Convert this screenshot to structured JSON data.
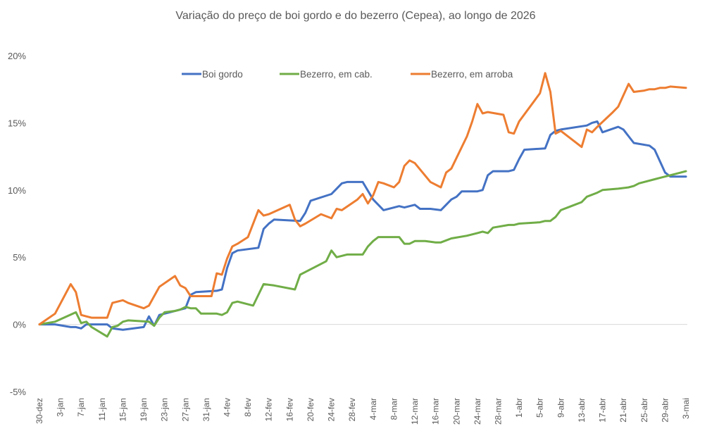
{
  "chart_data": {
    "type": "line",
    "title": "Variação do preço de boi gordo  e do bezerro (Cepea), ao longo de 2026",
    "xlabel": "",
    "ylabel": "",
    "ylim": [
      -0.05,
      0.2
    ],
    "yticks": [
      {
        "value": -0.05,
        "label": "-5%"
      },
      {
        "value": 0.0,
        "label": "0%"
      },
      {
        "value": 0.05,
        "label": "5%"
      },
      {
        "value": 0.1,
        "label": "10%"
      },
      {
        "value": 0.15,
        "label": "15%"
      },
      {
        "value": 0.2,
        "label": "20%"
      }
    ],
    "xlim": [
      0,
      124
    ],
    "xticks": [
      {
        "day": 0,
        "label": "30-dez"
      },
      {
        "day": 4,
        "label": "3-jan"
      },
      {
        "day": 8,
        "label": "7-jan"
      },
      {
        "day": 12,
        "label": "11-jan"
      },
      {
        "day": 16,
        "label": "15-jan"
      },
      {
        "day": 20,
        "label": "19-jan"
      },
      {
        "day": 24,
        "label": "23-jan"
      },
      {
        "day": 28,
        "label": "27-jan"
      },
      {
        "day": 32,
        "label": "31-jan"
      },
      {
        "day": 36,
        "label": "4-fev"
      },
      {
        "day": 40,
        "label": "8-fev"
      },
      {
        "day": 44,
        "label": "12-fev"
      },
      {
        "day": 48,
        "label": "16-fev"
      },
      {
        "day": 52,
        "label": "20-fev"
      },
      {
        "day": 56,
        "label": "24-fev"
      },
      {
        "day": 60,
        "label": "28-fev"
      },
      {
        "day": 64,
        "label": "4-mar"
      },
      {
        "day": 68,
        "label": "8-mar"
      },
      {
        "day": 72,
        "label": "12-mar"
      },
      {
        "day": 76,
        "label": "16-mar"
      },
      {
        "day": 80,
        "label": "20-mar"
      },
      {
        "day": 84,
        "label": "24-mar"
      },
      {
        "day": 88,
        "label": "28-mar"
      },
      {
        "day": 92,
        "label": "1-abr"
      },
      {
        "day": 96,
        "label": "5-abr"
      },
      {
        "day": 100,
        "label": "9-abr"
      },
      {
        "day": 104,
        "label": "13-abr"
      },
      {
        "day": 108,
        "label": "17-abr"
      },
      {
        "day": 112,
        "label": "21-abr"
      },
      {
        "day": 116,
        "label": "25-abr"
      },
      {
        "day": 120,
        "label": "29-abr"
      },
      {
        "day": 124,
        "label": "3-mai"
      }
    ],
    "legend_position": "top",
    "series": [
      {
        "name": "Boi gordo",
        "color": "#4472C4",
        "points": [
          [
            0,
            0.0
          ],
          [
            1,
            0.0
          ],
          [
            3,
            0.0
          ],
          [
            6,
            -0.002
          ],
          [
            7,
            -0.002
          ],
          [
            8,
            -0.003
          ],
          [
            9,
            0.0
          ],
          [
            13,
            0.0
          ],
          [
            14,
            -0.003
          ],
          [
            16,
            -0.004
          ],
          [
            20,
            -0.002
          ],
          [
            21,
            0.006
          ],
          [
            22,
            -0.001
          ],
          [
            23,
            0.007
          ],
          [
            25,
            0.009
          ],
          [
            28,
            0.012
          ],
          [
            29,
            0.022
          ],
          [
            30,
            0.024
          ],
          [
            34,
            0.025
          ],
          [
            35,
            0.026
          ],
          [
            36,
            0.042
          ],
          [
            37,
            0.053
          ],
          [
            38,
            0.055
          ],
          [
            42,
            0.057
          ],
          [
            43,
            0.071
          ],
          [
            44,
            0.075
          ],
          [
            45,
            0.078
          ],
          [
            50,
            0.077
          ],
          [
            51,
            0.083
          ],
          [
            52,
            0.092
          ],
          [
            56,
            0.097
          ],
          [
            57,
            0.101
          ],
          [
            58,
            0.105
          ],
          [
            59,
            0.106
          ],
          [
            61,
            0.106
          ],
          [
            62,
            0.106
          ],
          [
            64,
            0.093
          ],
          [
            65,
            0.089
          ],
          [
            66,
            0.085
          ],
          [
            69,
            0.088
          ],
          [
            70,
            0.087
          ],
          [
            71,
            0.088
          ],
          [
            72,
            0.089
          ],
          [
            73,
            0.086
          ],
          [
            75,
            0.086
          ],
          [
            77,
            0.085
          ],
          [
            79,
            0.093
          ],
          [
            80,
            0.095
          ],
          [
            81,
            0.099
          ],
          [
            84,
            0.099
          ],
          [
            85,
            0.1
          ],
          [
            86,
            0.111
          ],
          [
            87,
            0.114
          ],
          [
            90,
            0.114
          ],
          [
            91,
            0.115
          ],
          [
            92,
            0.123
          ],
          [
            93,
            0.13
          ],
          [
            97,
            0.131
          ],
          [
            98,
            0.141
          ],
          [
            99,
            0.144
          ],
          [
            100,
            0.145
          ],
          [
            105,
            0.148
          ],
          [
            106,
            0.15
          ],
          [
            107,
            0.151
          ],
          [
            108,
            0.143
          ],
          [
            111,
            0.147
          ],
          [
            112,
            0.145
          ],
          [
            113,
            0.14
          ],
          [
            114,
            0.135
          ],
          [
            117,
            0.133
          ],
          [
            118,
            0.13
          ],
          [
            120,
            0.113
          ],
          [
            121,
            0.11
          ],
          [
            124,
            0.11
          ]
        ]
      },
      {
        "name": "Bezerro, em cab.",
        "color": "#70AD47",
        "points": [
          [
            0,
            0.0
          ],
          [
            3,
            0.002
          ],
          [
            7,
            0.009
          ],
          [
            8,
            0.001
          ],
          [
            9,
            0.002
          ],
          [
            10,
            -0.002
          ],
          [
            13,
            -0.009
          ],
          [
            14,
            -0.002
          ],
          [
            15,
            -0.001
          ],
          [
            16,
            0.002
          ],
          [
            17,
            0.003
          ],
          [
            21,
            0.002
          ],
          [
            22,
            -0.001
          ],
          [
            23,
            0.005
          ],
          [
            24,
            0.009
          ],
          [
            26,
            0.01
          ],
          [
            27,
            0.011
          ],
          [
            28,
            0.013
          ],
          [
            29,
            0.012
          ],
          [
            30,
            0.012
          ],
          [
            31,
            0.008
          ],
          [
            33,
            0.008
          ],
          [
            34,
            0.008
          ],
          [
            35,
            0.007
          ],
          [
            36,
            0.009
          ],
          [
            37,
            0.016
          ],
          [
            38,
            0.017
          ],
          [
            41,
            0.014
          ],
          [
            43,
            0.03
          ],
          [
            45,
            0.029
          ],
          [
            49,
            0.026
          ],
          [
            50,
            0.037
          ],
          [
            51,
            0.039
          ],
          [
            55,
            0.047
          ],
          [
            56,
            0.055
          ],
          [
            57,
            0.05
          ],
          [
            58,
            0.051
          ],
          [
            59,
            0.052
          ],
          [
            62,
            0.052
          ],
          [
            63,
            0.058
          ],
          [
            64,
            0.062
          ],
          [
            65,
            0.065
          ],
          [
            66,
            0.065
          ],
          [
            69,
            0.065
          ],
          [
            70,
            0.06
          ],
          [
            71,
            0.06
          ],
          [
            72,
            0.062
          ],
          [
            74,
            0.062
          ],
          [
            76,
            0.061
          ],
          [
            77,
            0.061
          ],
          [
            79,
            0.064
          ],
          [
            82,
            0.066
          ],
          [
            84,
            0.068
          ],
          [
            85,
            0.069
          ],
          [
            86,
            0.068
          ],
          [
            87,
            0.072
          ],
          [
            90,
            0.074
          ],
          [
            91,
            0.074
          ],
          [
            92,
            0.075
          ],
          [
            96,
            0.076
          ],
          [
            97,
            0.077
          ],
          [
            98,
            0.077
          ],
          [
            99,
            0.08
          ],
          [
            100,
            0.085
          ],
          [
            102,
            0.088
          ],
          [
            104,
            0.091
          ],
          [
            105,
            0.095
          ],
          [
            107,
            0.098
          ],
          [
            108,
            0.1
          ],
          [
            111,
            0.101
          ],
          [
            113,
            0.102
          ],
          [
            114,
            0.103
          ],
          [
            115,
            0.105
          ],
          [
            118,
            0.108
          ],
          [
            119,
            0.109
          ],
          [
            120,
            0.11
          ],
          [
            122,
            0.112
          ],
          [
            124,
            0.114
          ]
        ]
      },
      {
        "name": "Bezerro, em arroba",
        "color": "#ED7D31",
        "points": [
          [
            0,
            0.0
          ],
          [
            3,
            0.008
          ],
          [
            6,
            0.03
          ],
          [
            7,
            0.024
          ],
          [
            8,
            0.007
          ],
          [
            9,
            0.006
          ],
          [
            10,
            0.005
          ],
          [
            13,
            0.005
          ],
          [
            14,
            0.016
          ],
          [
            16,
            0.018
          ],
          [
            17,
            0.016
          ],
          [
            20,
            0.012
          ],
          [
            21,
            0.014
          ],
          [
            23,
            0.028
          ],
          [
            26,
            0.036
          ],
          [
            27,
            0.029
          ],
          [
            28,
            0.027
          ],
          [
            29,
            0.021
          ],
          [
            30,
            0.021
          ],
          [
            33,
            0.021
          ],
          [
            34,
            0.038
          ],
          [
            35,
            0.037
          ],
          [
            36,
            0.049
          ],
          [
            37,
            0.058
          ],
          [
            38,
            0.06
          ],
          [
            40,
            0.065
          ],
          [
            42,
            0.085
          ],
          [
            43,
            0.081
          ],
          [
            44,
            0.082
          ],
          [
            48,
            0.089
          ],
          [
            49,
            0.078
          ],
          [
            50,
            0.073
          ],
          [
            51,
            0.075
          ],
          [
            54,
            0.082
          ],
          [
            56,
            0.079
          ],
          [
            57,
            0.086
          ],
          [
            58,
            0.085
          ],
          [
            61,
            0.093
          ],
          [
            62,
            0.097
          ],
          [
            63,
            0.09
          ],
          [
            64,
            0.096
          ],
          [
            65,
            0.106
          ],
          [
            66,
            0.105
          ],
          [
            68,
            0.102
          ],
          [
            69,
            0.106
          ],
          [
            70,
            0.118
          ],
          [
            71,
            0.122
          ],
          [
            72,
            0.12
          ],
          [
            75,
            0.106
          ],
          [
            77,
            0.102
          ],
          [
            78,
            0.113
          ],
          [
            79,
            0.116
          ],
          [
            82,
            0.14
          ],
          [
            83,
            0.151
          ],
          [
            84,
            0.164
          ],
          [
            85,
            0.157
          ],
          [
            86,
            0.158
          ],
          [
            89,
            0.156
          ],
          [
            90,
            0.143
          ],
          [
            91,
            0.142
          ],
          [
            92,
            0.151
          ],
          [
            96,
            0.172
          ],
          [
            97,
            0.187
          ],
          [
            98,
            0.173
          ],
          [
            99,
            0.142
          ],
          [
            100,
            0.144
          ],
          [
            104,
            0.132
          ],
          [
            105,
            0.145
          ],
          [
            106,
            0.143
          ],
          [
            107,
            0.147
          ],
          [
            110,
            0.158
          ],
          [
            111,
            0.162
          ],
          [
            113,
            0.179
          ],
          [
            114,
            0.173
          ],
          [
            116,
            0.174
          ],
          [
            117,
            0.175
          ],
          [
            118,
            0.175
          ],
          [
            119,
            0.176
          ],
          [
            120,
            0.176
          ],
          [
            121,
            0.177
          ],
          [
            124,
            0.176
          ]
        ]
      }
    ]
  }
}
